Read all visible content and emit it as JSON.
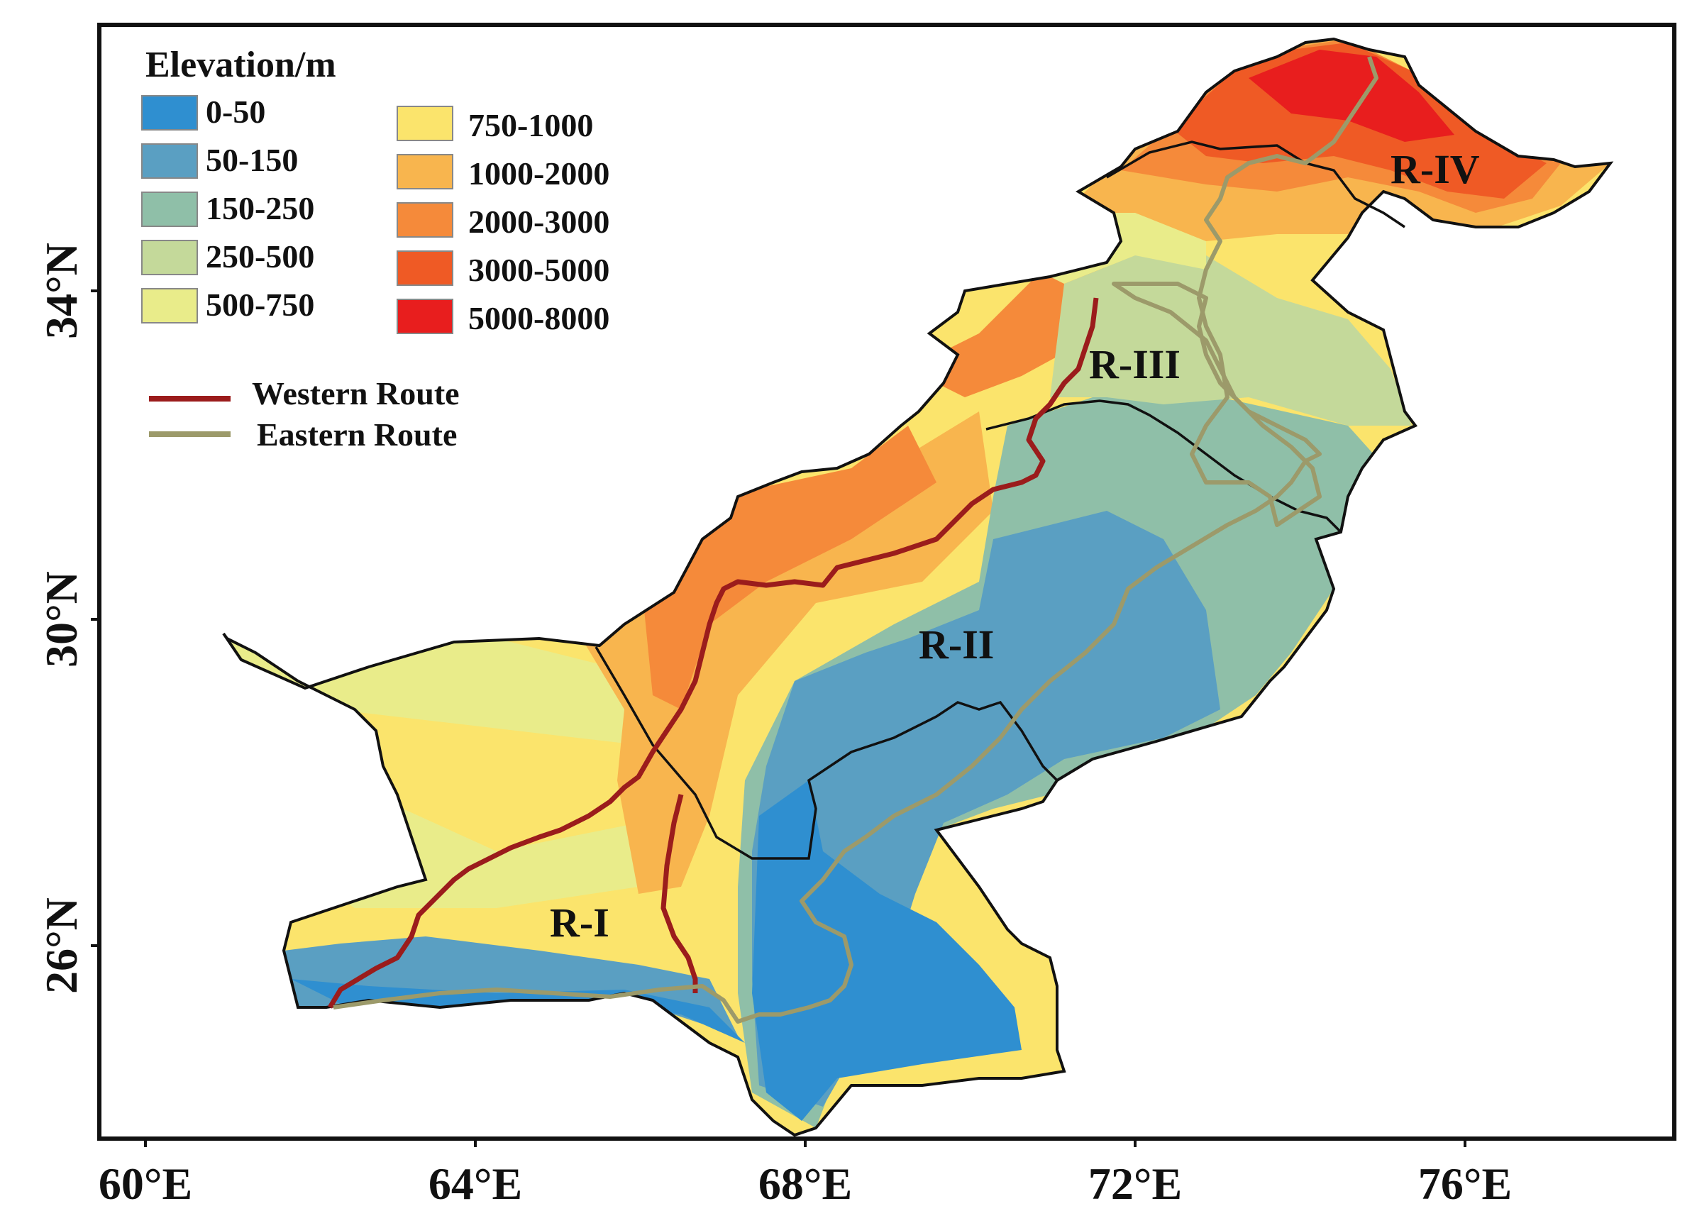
{
  "legend": {
    "title": "Elevation/m",
    "classes": [
      {
        "label": "0-50",
        "color": "#2f8fd0"
      },
      {
        "label": "50-150",
        "color": "#5a9fc2"
      },
      {
        "label": "150-250",
        "color": "#8fbfa8"
      },
      {
        "label": "250-500",
        "color": "#c4d99a"
      },
      {
        "label": "500-750",
        "color": "#e9ec8a"
      },
      {
        "label": "750-1000",
        "color": "#fbe46c"
      },
      {
        "label": "1000-2000",
        "color": "#f8b54e"
      },
      {
        "label": "2000-3000",
        "color": "#f58a3a"
      },
      {
        "label": "3000-5000",
        "color": "#ef5a25"
      },
      {
        "label": "5000-8000",
        "color": "#e81e1e"
      }
    ],
    "routes": [
      {
        "label": "Western Route",
        "color": "#9b1c1c"
      },
      {
        "label": "Eastern Route",
        "color": "#9c9a6a"
      }
    ]
  },
  "axes": {
    "latitude_labels": [
      "34°N",
      "30°N",
      "26°N"
    ],
    "longitude_labels": [
      "60°E",
      "64°E",
      "68°E",
      "72°E",
      "76°E"
    ]
  },
  "regions": [
    "R-I",
    "R-II",
    "R-III",
    "R-IV"
  ]
}
